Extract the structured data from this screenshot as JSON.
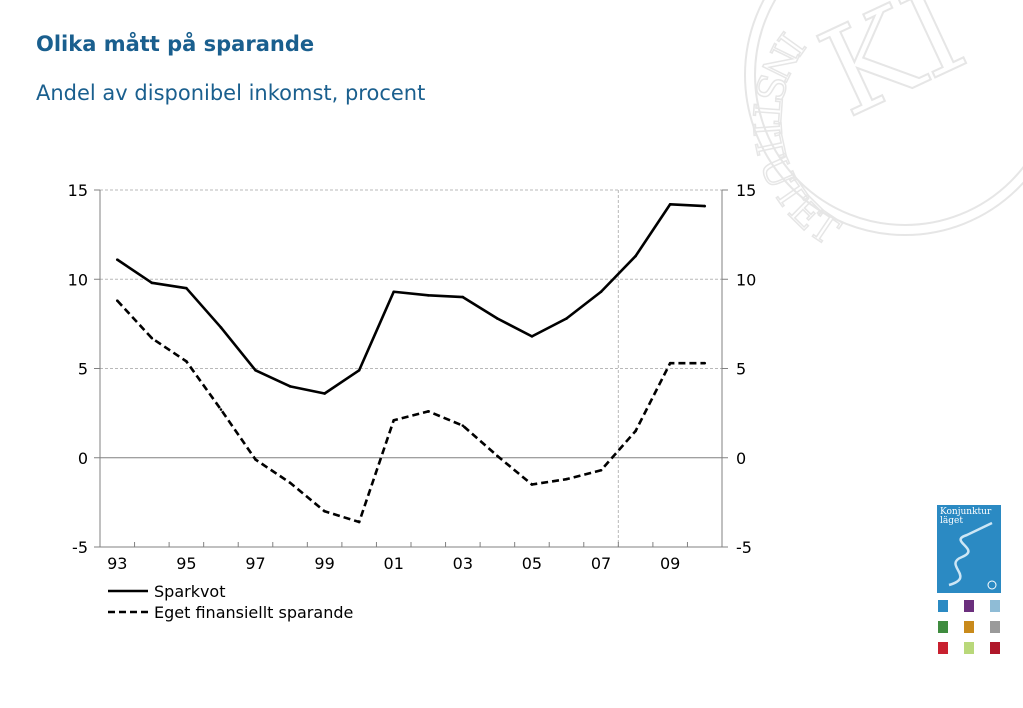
{
  "title": "Olika mått på sparande",
  "subtitle": "Andel av disponibel inkomst, procent",
  "logo": {
    "seal_text": "INSTITUTET",
    "seal_letters": "KI",
    "book_title_line1": "Konjunktur",
    "book_title_line2": "läget"
  },
  "colors": {
    "title": "#1a5f8e",
    "axis": "#808080",
    "grid": "#b8b8b8",
    "series": "#000000"
  },
  "chart_data": {
    "type": "line",
    "x": [
      1993,
      1994,
      1995,
      1996,
      1997,
      1998,
      1999,
      2000,
      2001,
      2002,
      2003,
      2004,
      2005,
      2006,
      2007,
      2008,
      2009,
      2010
    ],
    "x_tick_labels": [
      "93",
      "95",
      "97",
      "99",
      "01",
      "03",
      "05",
      "07",
      "09"
    ],
    "x_tick_label_years": [
      1993,
      1995,
      1997,
      1999,
      2001,
      2003,
      2005,
      2007,
      2009
    ],
    "series": [
      {
        "name": "Sparkvot",
        "style": "solid",
        "values": [
          11.1,
          9.8,
          9.5,
          7.3,
          4.9,
          4.0,
          3.6,
          4.9,
          9.3,
          9.1,
          9.0,
          7.8,
          6.8,
          7.8,
          9.3,
          11.3,
          14.2,
          14.1
        ]
      },
      {
        "name": "Eget finansiellt sparande",
        "style": "dashed",
        "values": [
          8.8,
          6.7,
          5.4,
          2.7,
          -0.1,
          -1.4,
          -3.0,
          -3.6,
          2.1,
          2.6,
          1.8,
          0.1,
          -1.5,
          -1.2,
          -0.7,
          1.5,
          5.3,
          5.3
        ]
      }
    ],
    "ylim": [
      -5,
      15
    ],
    "y_ticks": [
      -5,
      0,
      5,
      10,
      15
    ],
    "y_tick_labels_left": [
      "-5",
      "0",
      "5",
      "10",
      "15"
    ],
    "y_tick_labels_right": [
      "-5",
      "0",
      "5",
      "10",
      "15"
    ],
    "vertical_marker_x": 2007.5,
    "grid": true,
    "legend_position": "bottom-left",
    "xlabel": "",
    "ylabel": ""
  }
}
